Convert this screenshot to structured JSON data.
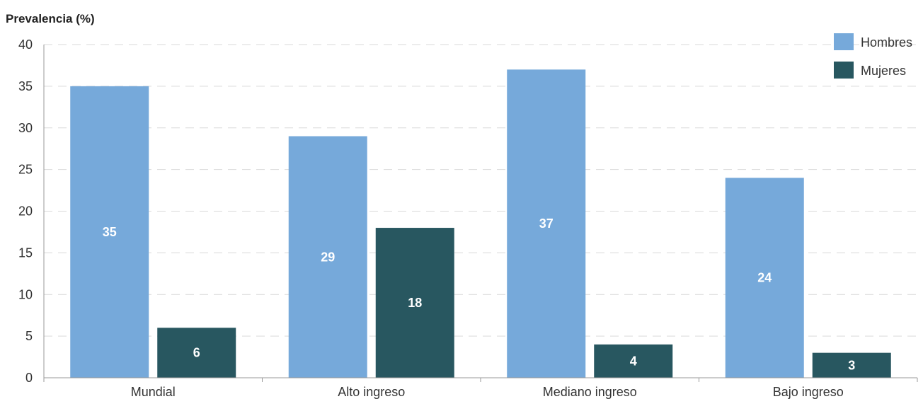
{
  "chart_data": {
    "type": "bar",
    "ylabel": "Prevalencia (%)",
    "xlabel": "",
    "ylim": [
      0,
      40
    ],
    "yticks": [
      0,
      5,
      10,
      15,
      20,
      25,
      30,
      35,
      40
    ],
    "categories": [
      "Mundial",
      "Alto ingreso",
      "Mediano ingreso",
      "Bajo ingreso"
    ],
    "series": [
      {
        "name": "Hombres",
        "color": "#76a9da",
        "values": [
          35,
          29,
          37,
          24
        ]
      },
      {
        "name": "Mujeres",
        "color": "#285760",
        "values": [
          6,
          18,
          4,
          3
        ]
      }
    ],
    "data_labels": true,
    "grid": "horizontal-dashed",
    "legend_position": "top-right"
  }
}
